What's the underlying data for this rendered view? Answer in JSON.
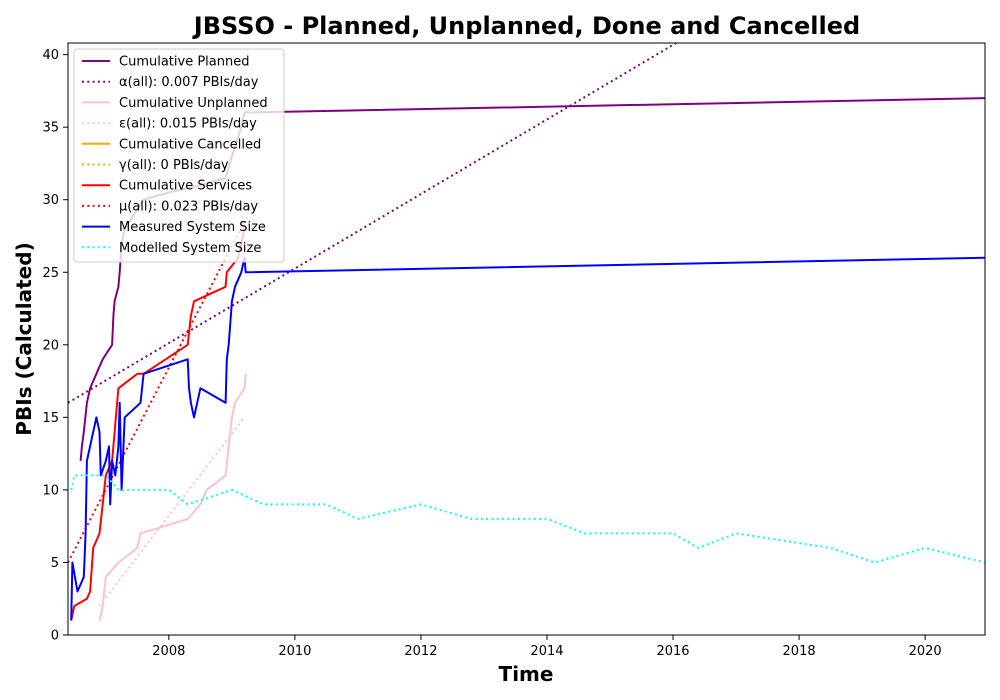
{
  "chart_data": {
    "type": "line",
    "title": "JBSSO - Planned, Unplanned, Done  and Cancelled",
    "xlabel": "Time",
    "ylabel": "PBIs (Calculated)",
    "xlim": [
      2006.4,
      2020.95
    ],
    "ylim": [
      0,
      40.8
    ],
    "x_ticks": [
      2008,
      2010,
      2012,
      2014,
      2016,
      2018,
      2020
    ],
    "x_tick_labels": [
      "2008",
      "2010",
      "2012",
      "2014",
      "2016",
      "2018",
      "2020"
    ],
    "y_ticks": [
      0,
      5,
      10,
      15,
      20,
      25,
      30,
      35,
      40
    ],
    "y_tick_labels": [
      "0",
      "5",
      "10",
      "15",
      "20",
      "25",
      "30",
      "35",
      "40"
    ],
    "grid": false,
    "legend_position": "top-left",
    "series": [
      {
        "name": "Cumulative Planned",
        "color": "#800080",
        "style": "solid",
        "points": [
          [
            2006.6,
            12
          ],
          [
            2006.62,
            13
          ],
          [
            2006.65,
            14
          ],
          [
            2006.7,
            16
          ],
          [
            2006.75,
            17
          ],
          [
            2006.85,
            18
          ],
          [
            2006.95,
            19
          ],
          [
            2007.1,
            20
          ],
          [
            2007.12,
            22
          ],
          [
            2007.14,
            23
          ],
          [
            2007.2,
            24
          ],
          [
            2007.22,
            25
          ],
          [
            2007.25,
            27
          ],
          [
            2007.3,
            28
          ],
          [
            2007.45,
            29
          ],
          [
            2007.6,
            30
          ],
          [
            2008.0,
            30.5
          ],
          [
            2008.5,
            31
          ],
          [
            2008.9,
            31.5
          ],
          [
            2009.0,
            33
          ],
          [
            2009.15,
            35
          ],
          [
            2009.2,
            36
          ],
          [
            2020.95,
            37
          ]
        ]
      },
      {
        "name": "α(all): 0.007 PBIs/day",
        "color": "#800080",
        "style": "dotted",
        "points": [
          [
            2006.4,
            16
          ],
          [
            2016.05,
            40.8
          ]
        ]
      },
      {
        "name": "Cumulative Unplanned",
        "color": "#ffc0cb",
        "style": "solid",
        "points": [
          [
            2006.9,
            1
          ],
          [
            2006.95,
            2
          ],
          [
            2007.0,
            4
          ],
          [
            2007.2,
            5
          ],
          [
            2007.5,
            6
          ],
          [
            2007.55,
            7
          ],
          [
            2008.3,
            8
          ],
          [
            2008.5,
            9
          ],
          [
            2008.6,
            10
          ],
          [
            2008.9,
            11
          ],
          [
            2008.95,
            13
          ],
          [
            2009.0,
            15
          ],
          [
            2009.05,
            16
          ],
          [
            2009.2,
            17
          ],
          [
            2009.22,
            18
          ]
        ]
      },
      {
        "name": "ε(all): 0.015 PBIs/day",
        "color": "#ffc0cb",
        "style": "dotted",
        "points": [
          [
            2006.9,
            2
          ],
          [
            2009.2,
            15
          ]
        ]
      },
      {
        "name": "Cumulative Cancelled",
        "color": "#ffa500",
        "style": "solid",
        "points": []
      },
      {
        "name": "γ(all): 0 PBIs/day",
        "color": "#ffa500",
        "style": "dotted",
        "points": []
      },
      {
        "name": "Cumulative Services",
        "color": "#ff0000",
        "style": "solid",
        "points": [
          [
            2006.45,
            1
          ],
          [
            2006.5,
            2
          ],
          [
            2006.7,
            2.5
          ],
          [
            2006.75,
            3
          ],
          [
            2006.8,
            6
          ],
          [
            2006.9,
            7
          ],
          [
            2006.95,
            9
          ],
          [
            2007.0,
            11
          ],
          [
            2007.1,
            12
          ],
          [
            2007.2,
            17
          ],
          [
            2007.5,
            18
          ],
          [
            2007.6,
            18
          ],
          [
            2008.3,
            20
          ],
          [
            2008.35,
            22
          ],
          [
            2008.4,
            23
          ],
          [
            2008.9,
            24
          ],
          [
            2008.92,
            25
          ],
          [
            2009.1,
            26
          ],
          [
            2009.15,
            27
          ],
          [
            2009.2,
            28
          ]
        ]
      },
      {
        "name": "μ(all): 0.023 PBIs/day",
        "color": "#ff0000",
        "style": "dotted",
        "points": [
          [
            2006.4,
            5
          ],
          [
            2009.2,
            28.5
          ]
        ]
      },
      {
        "name": "Measured System Size",
        "color": "#0000ff",
        "style": "solid",
        "points": [
          [
            2006.45,
            1
          ],
          [
            2006.47,
            5
          ],
          [
            2006.55,
            3
          ],
          [
            2006.65,
            4
          ],
          [
            2006.68,
            7
          ],
          [
            2006.7,
            12
          ],
          [
            2006.8,
            14
          ],
          [
            2006.85,
            15
          ],
          [
            2006.9,
            14
          ],
          [
            2006.92,
            11
          ],
          [
            2007.0,
            12
          ],
          [
            2007.05,
            13
          ],
          [
            2007.07,
            9
          ],
          [
            2007.1,
            12
          ],
          [
            2007.15,
            11
          ],
          [
            2007.2,
            13
          ],
          [
            2007.22,
            16
          ],
          [
            2007.25,
            10
          ],
          [
            2007.3,
            15
          ],
          [
            2007.55,
            16
          ],
          [
            2007.6,
            18
          ],
          [
            2008.3,
            19
          ],
          [
            2008.32,
            17
          ],
          [
            2008.35,
            16
          ],
          [
            2008.4,
            15
          ],
          [
            2008.45,
            16
          ],
          [
            2008.5,
            17
          ],
          [
            2008.9,
            16
          ],
          [
            2008.92,
            19
          ],
          [
            2008.95,
            20
          ],
          [
            2009.0,
            23
          ],
          [
            2009.05,
            24
          ],
          [
            2009.15,
            25
          ],
          [
            2009.2,
            26
          ],
          [
            2009.22,
            25
          ],
          [
            2020.95,
            26
          ]
        ]
      },
      {
        "name": "Modelled System Size",
        "color": "#00ffff",
        "style": "dotted",
        "points": [
          [
            2006.45,
            10
          ],
          [
            2006.5,
            11
          ],
          [
            2007.0,
            11
          ],
          [
            2007.2,
            10
          ],
          [
            2008.0,
            10
          ],
          [
            2008.3,
            9
          ],
          [
            2009.0,
            10
          ],
          [
            2009.5,
            9
          ],
          [
            2010.5,
            9
          ],
          [
            2011.0,
            8
          ],
          [
            2012.0,
            9
          ],
          [
            2012.8,
            8
          ],
          [
            2014.0,
            8
          ],
          [
            2014.6,
            7
          ],
          [
            2016.0,
            7
          ],
          [
            2016.4,
            6
          ],
          [
            2017.0,
            7
          ],
          [
            2018.5,
            6
          ],
          [
            2019.2,
            5
          ],
          [
            2020.0,
            6
          ],
          [
            2020.95,
            5
          ]
        ]
      }
    ]
  }
}
